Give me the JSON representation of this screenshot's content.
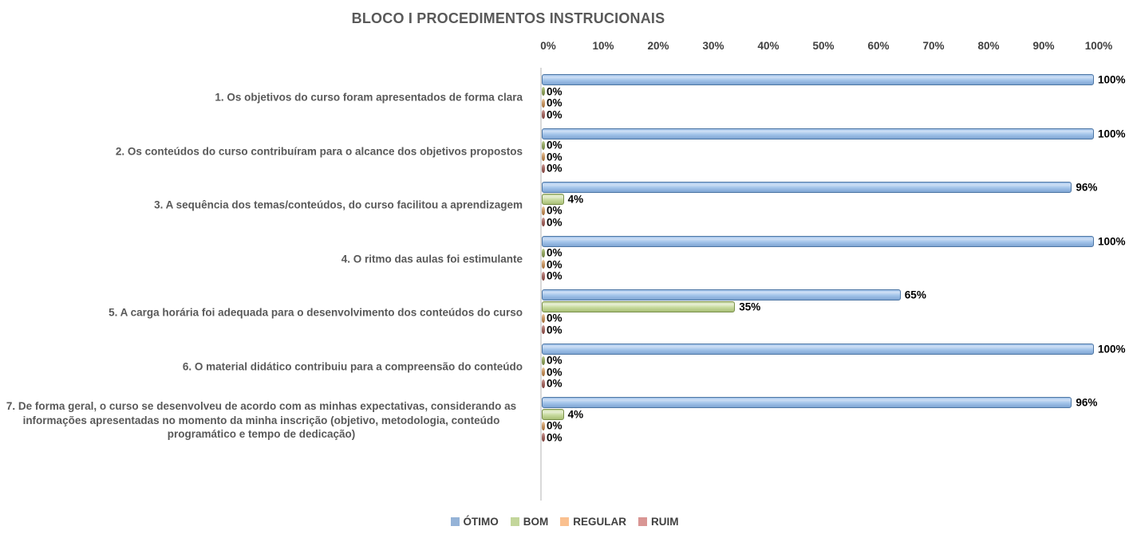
{
  "chart_data": {
    "type": "bar",
    "orientation": "horizontal",
    "title": "BLOCO I PROCEDIMENTOS INSTRUCIONAIS",
    "categories": [
      "1. Os objetivos do curso foram apresentados de forma clara",
      "2. Os conteúdos do curso contribuíram para o alcance dos objetivos propostos",
      "3. A sequência dos temas/conteúdos, do curso facilitou a aprendizagem",
      "4. O ritmo das aulas foi estimulante",
      "5. A carga horária foi adequada para o desenvolvimento dos conteúdos do curso",
      "6. O material didático contribuiu para a compreensão do conteúdo",
      "7. De forma geral, o curso se desenvolveu de acordo com as minhas expectativas, considerando as informações apresentadas no momento da minha inscrição (objetivo, metodologia, conteúdo programático e tempo de dedicação)"
    ],
    "series": [
      {
        "name": "ÓTIMO",
        "color": "#95B3D7",
        "values": [
          100,
          100,
          96,
          100,
          65,
          100,
          96
        ]
      },
      {
        "name": "BOM",
        "color": "#C3D69B",
        "values": [
          0,
          0,
          4,
          0,
          35,
          0,
          4
        ]
      },
      {
        "name": "REGULAR",
        "color": "#FAC08F",
        "values": [
          0,
          0,
          0,
          0,
          0,
          0,
          0
        ]
      },
      {
        "name": "RUIM",
        "color": "#D99694",
        "values": [
          0,
          0,
          0,
          0,
          0,
          0,
          0
        ]
      }
    ],
    "x_axis": {
      "min": 0,
      "max": 100,
      "tick_labels": [
        "0%",
        "10%",
        "20%",
        "30%",
        "40%",
        "50%",
        "60%",
        "70%",
        "80%",
        "90%",
        "100%"
      ],
      "position": "top",
      "grid": false
    },
    "data_labels": true,
    "value_suffix": "%",
    "legend_position": "bottom",
    "colors": {
      "title_text": "#595959",
      "category_text": "#595959",
      "tick_text": "#404040",
      "data_label_text": "#000000",
      "axis_line": "#d9d9d9",
      "background": "#ffffff"
    }
  }
}
